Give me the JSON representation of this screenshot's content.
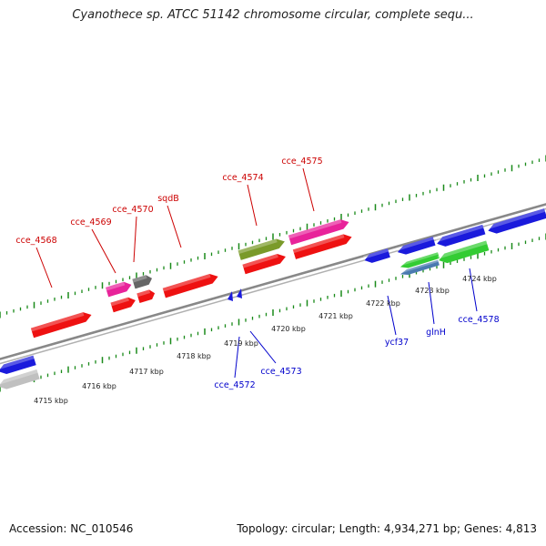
{
  "title": "Cyanothece sp. ATCC 51142 chromosome circular, complete sequ...",
  "footer": {
    "accession": "Accession: NC_010546",
    "summary": "Topology: circular; Length: 4,934,271 bp; Genes: 4,813"
  },
  "scale_labels": [
    "4715 kbp",
    "4716 kbp",
    "4717 kbp",
    "4718 kbp",
    "4719 kbp",
    "4720 kbp",
    "4721 kbp",
    "4722 kbp",
    "4723 kbp",
    "4724 kbp"
  ],
  "forward_genes": [
    "cce_4568",
    "cce_4569",
    "cce_4570",
    "sqdB",
    "cce_4574",
    "cce_4575"
  ],
  "reverse_genes": [
    "cce_4572",
    "cce_4573",
    "ycf37",
    "glnH",
    "cce_4578"
  ],
  "colors": {
    "forward_label": "#cc0000",
    "reverse_label": "#0000cc",
    "tick": "#1a8a1a",
    "backbone": "#888888",
    "gene_red": "#ee1111",
    "gene_magenta": "#e8239a",
    "gene_olive": "#7a9a2a",
    "gene_gray": "#666666",
    "gene_blue": "#1a1adc",
    "gene_green": "#33cc33",
    "gene_steel": "#4a7ab0",
    "gene_silver": "#c0c0c0"
  }
}
